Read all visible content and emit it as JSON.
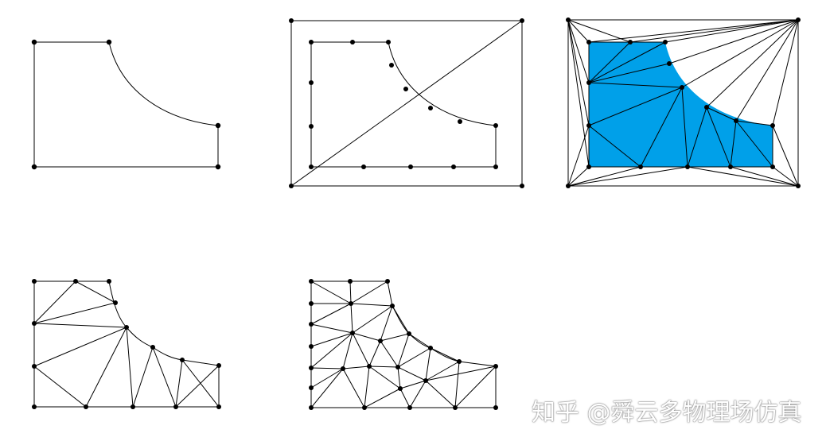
{
  "watermark": "知乎 @舜云多物理场仿真",
  "colors": {
    "fill": "#00a0e9",
    "line": "#000000",
    "background": "#ffffff"
  },
  "panels": [
    {
      "name": "geometry-boundary"
    },
    {
      "name": "boundary-nodes-bounding-box"
    },
    {
      "name": "initial-delaunay-triangulation"
    },
    {
      "name": "boundary-triangulation"
    },
    {
      "name": "refined-mesh"
    }
  ]
}
